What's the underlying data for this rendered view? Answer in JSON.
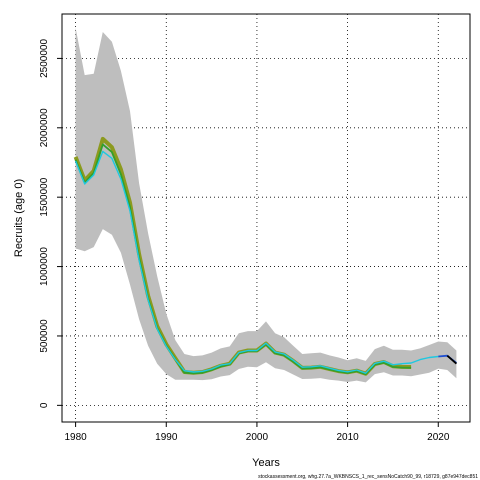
{
  "chart_data": {
    "type": "line",
    "title": "",
    "xlabel": "Years",
    "ylabel": "Recruits (age 0)",
    "xlim": [
      1978.5,
      2023.5
    ],
    "ylim": [
      -120000,
      2820000
    ],
    "x_ticks": [
      "1980",
      "1990",
      "2000",
      "2010",
      "2020"
    ],
    "y_ticks": [
      "0",
      "500000",
      "1000000",
      "1500000",
      "2000000",
      "2500000"
    ],
    "grid": true,
    "legend": "none",
    "footnote": "stockassessment.org, whg.27.7a_WKBNSCS_1_rec_sensNoCatch90_99, r18729, g87e947dec851",
    "colors": {
      "confidence_band": "#bebebe",
      "olive": "#8c9a1f",
      "green": "#33a02c",
      "cyan": "#1ec8e0",
      "blue": "#1f4fd0",
      "black": "#000000"
    },
    "band": {
      "x": [
        1980,
        1981,
        1982,
        1983,
        1984,
        1985,
        1986,
        1987,
        1988,
        1989,
        1990,
        1991,
        1992,
        1993,
        1994,
        1995,
        1996,
        1997,
        1998,
        1999,
        2000,
        2001,
        2002,
        2003,
        2004,
        2005,
        2006,
        2007,
        2008,
        2009,
        2010,
        2011,
        2012,
        2013,
        2014,
        2015,
        2016,
        2017,
        2018,
        2019,
        2020,
        2021,
        2022
      ],
      "upper": [
        2720000,
        2380000,
        2390000,
        2690000,
        2620000,
        2410000,
        2120000,
        1600000,
        1240000,
        930000,
        660000,
        470000,
        370000,
        355000,
        360000,
        380000,
        410000,
        425000,
        520000,
        535000,
        535000,
        605000,
        520000,
        490000,
        430000,
        370000,
        375000,
        380000,
        360000,
        345000,
        325000,
        340000,
        320000,
        405000,
        430000,
        400000,
        400000,
        395000,
        410000,
        435000,
        460000,
        455000,
        395000
      ],
      "lower": [
        1130000,
        1110000,
        1140000,
        1270000,
        1230000,
        1100000,
        870000,
        620000,
        430000,
        300000,
        225000,
        185000,
        185000,
        185000,
        182000,
        188000,
        208000,
        218000,
        262000,
        278000,
        275000,
        310000,
        268000,
        255000,
        222000,
        190000,
        192000,
        196000,
        185000,
        178000,
        168000,
        178000,
        165000,
        225000,
        238000,
        215000,
        215000,
        210000,
        222000,
        235000,
        265000,
        255000,
        195000
      ]
    },
    "series": [
      {
        "color": "olive",
        "x": [
          1980,
          1981,
          1982,
          1983,
          1984,
          1985,
          1986,
          1987,
          1988,
          1989,
          1990,
          1991,
          1992,
          1993,
          1994,
          1995,
          1996,
          1997,
          1998,
          1999,
          2000,
          2001,
          2002,
          2003,
          2004,
          2005,
          2006,
          2007,
          2008,
          2009,
          2010,
          2011,
          2012,
          2013,
          2014,
          2015,
          2016,
          2017
        ],
        "y": [
          1790000,
          1620000,
          1690000,
          1920000,
          1860000,
          1700000,
          1460000,
          1090000,
          790000,
          570000,
          440000,
          340000,
          240000,
          235000,
          240000,
          260000,
          285000,
          300000,
          380000,
          395000,
          395000,
          445000,
          380000,
          365000,
          320000,
          270000,
          272000,
          278000,
          262000,
          247000,
          238000,
          250000,
          228000,
          298000,
          312000,
          282000,
          277000,
          276000
        ]
      },
      {
        "color": "green",
        "x": [
          1980,
          1981,
          1982,
          1983,
          1984,
          1985,
          1986,
          1987,
          1988,
          1989,
          1990,
          1991,
          1992,
          1993,
          1994,
          1995,
          1996,
          1997,
          1998,
          1999,
          2000,
          2001,
          2002,
          2003,
          2004,
          2005,
          2006,
          2007,
          2008,
          2009,
          2010,
          2011,
          2012,
          2013,
          2014,
          2015,
          2016,
          2017
        ],
        "y": [
          1770000,
          1605000,
          1675000,
          1880000,
          1825000,
          1665000,
          1430000,
          1065000,
          770000,
          555000,
          430000,
          332000,
          235000,
          230000,
          235000,
          255000,
          280000,
          295000,
          375000,
          390000,
          390000,
          440000,
          375000,
          360000,
          315000,
          265000,
          268000,
          274000,
          258000,
          243000,
          234000,
          246000,
          225000,
          293000,
          307000,
          277000,
          272000,
          271000
        ]
      },
      {
        "color": "cyan",
        "x": [
          1980,
          1981,
          1982,
          1983,
          1984,
          1985,
          1986,
          1987,
          1988,
          1989,
          1990,
          1991,
          1992,
          1993,
          1994,
          1995,
          1996,
          1997,
          1998,
          1999,
          2000,
          2001,
          2002,
          2003,
          2004,
          2005,
          2006,
          2007,
          2008,
          2009,
          2010,
          2011,
          2012,
          2013,
          2014,
          2015,
          2016,
          2017,
          2018,
          2019,
          2020
        ],
        "y": [
          1760000,
          1595000,
          1660000,
          1830000,
          1780000,
          1630000,
          1400000,
          1045000,
          760000,
          550000,
          425000,
          330000,
          250000,
          240000,
          245000,
          262000,
          290000,
          300000,
          380000,
          395000,
          395000,
          448000,
          385000,
          370000,
          325000,
          275000,
          278000,
          285000,
          268000,
          252000,
          242000,
          255000,
          232000,
          302000,
          318000,
          292000,
          300000,
          305000,
          330000,
          345000,
          352000
        ]
      },
      {
        "color": "blue",
        "x": [
          2020,
          2021,
          2022
        ],
        "y": [
          352000,
          358000,
          305000
        ]
      },
      {
        "color": "black",
        "x": [
          2021,
          2022
        ],
        "y": [
          358000,
          300000
        ]
      }
    ]
  }
}
